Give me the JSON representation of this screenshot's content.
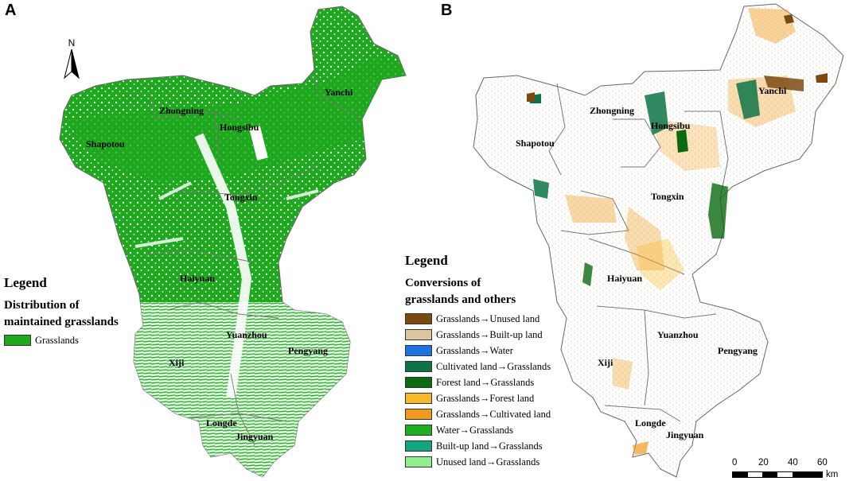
{
  "panels": {
    "a": {
      "letter": "A",
      "north": "N",
      "labels": {
        "yanchi": "Yanchi",
        "zhongning": "Zhongning",
        "hongsibu": "Hongsibu",
        "shapotou": "Shapotou",
        "tongxin": "Tongxin",
        "haiyuan": "Haiyuan",
        "yuanzhou": "Yuanzhou",
        "pengyang": "Pengyang",
        "xiji": "Xiji",
        "longde": "Longde",
        "jingyuan": "Jingyuan"
      },
      "legend": {
        "title": "Legend",
        "subtitle_line1": "Distribution of",
        "subtitle_line2": "maintained grasslands",
        "item": {
          "label": "Grasslands",
          "color": "#1ea81e"
        }
      }
    },
    "b": {
      "letter": "B",
      "labels": {
        "yanchi": "Yanchi",
        "zhongning": "Zhongning",
        "hongsibu": "Hongsibu",
        "shapotou": "Shapotou",
        "tongxin": "Tongxin",
        "haiyuan": "Haiyuan",
        "yuanzhou": "Yuanzhou",
        "pengyang": "Pengyang",
        "xiji": "Xiji",
        "longde": "Longde",
        "jingyuan": "Jingyuan"
      },
      "legend": {
        "title": "Legend",
        "subtitle_line1": "Conversions of",
        "subtitle_line2": "grasslands and others",
        "items": [
          {
            "label": "Grasslands→Unused land",
            "color": "#7b4a12"
          },
          {
            "label": "Grasslands→Built-up land",
            "color": "#dcc6a0"
          },
          {
            "label": "Grasslands→Water",
            "color": "#1c74e0"
          },
          {
            "label": "Cultivated land→Grasslands",
            "color": "#0d7446"
          },
          {
            "label": "Forest land→Grasslands",
            "color": "#0b6a12"
          },
          {
            "label": "Grasslands→Forest land",
            "color": "#f5b92a"
          },
          {
            "label": "Grasslands→Cultivated land",
            "color": "#f29a20"
          },
          {
            "label": "Water→Grasslands",
            "color": "#1fb01f"
          },
          {
            "label": "Built-up land→Grasslands",
            "color": "#13a57c"
          },
          {
            "label": "Unused land→Grasslands",
            "color": "#8ff08f"
          }
        ]
      },
      "scalebar": {
        "ticks": [
          "0",
          "20",
          "40",
          "60"
        ],
        "unit": "km"
      }
    }
  }
}
